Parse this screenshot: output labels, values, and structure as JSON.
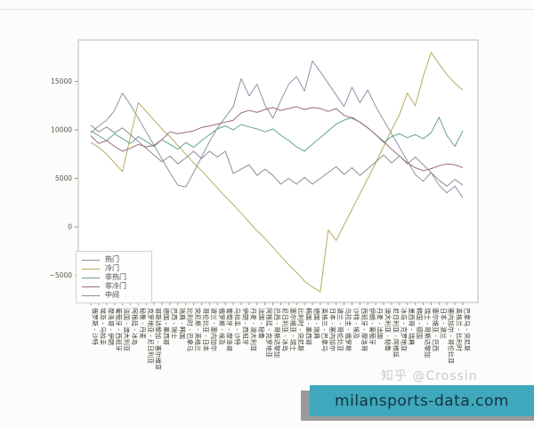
{
  "watermark": {
    "text": "知乎 @Crossin"
  },
  "banner": {
    "text": "milansports-data.com",
    "background": "#3fa8bd",
    "shadow": "#9b9b9b",
    "text_color": "#17333f"
  },
  "chart_data": {
    "type": "line",
    "title": "",
    "xlabel": "",
    "ylabel": "",
    "ylim": [
      -7900,
      19200
    ],
    "yticks": [
      -5000,
      0,
      5000,
      10000,
      15000
    ],
    "grid": false,
    "legend_position": "lower-left",
    "categories": [
      "俄罗斯 - 沙特",
      "埃及 - 乌拉圭",
      "摩洛哥 - 伊朗",
      "葡萄牙 - 西班牙",
      "法国 - 澳大利亚",
      "阿根廷 - 冰岛",
      "秘鲁 - 丹麦",
      "克罗地亚 - 尼日利亚",
      "哥斯达黎加 - 塞尔维亚",
      "德国 - 墨西哥",
      "巴西 - 瑞士",
      "瑞典 - 韩国",
      "比利时 - 巴拿马",
      "突尼斯 - 英格兰",
      "哥伦比亚 - 日本",
      "波兰 - 塞内加尔",
      "俄罗斯 - 埃及",
      "葡萄牙 - 摩洛哥",
      "乌拉圭 - 沙特",
      "伊朗 - 西班牙",
      "丹麦 - 澳大利亚",
      "法国 - 秘鲁",
      "阿根廷 - 克罗地亚",
      "巴西 - 哥斯达黎加",
      "尼日利亚 - 冰岛",
      "塞尔维亚 - 瑞士",
      "比利时 - 突尼斯",
      "韩国 - 墨西哥",
      "德国 - 瑞典",
      "英格兰 - 巴拿马",
      "日本 - 塞内加尔",
      "波兰 - 哥伦比亚",
      "乌拉圭 - 俄罗斯",
      "沙特 - 埃及",
      "西班牙 - 摩洛哥",
      "伊朗 - 葡萄牙",
      "丹麦 - 法国",
      "澳大利亚 - 秘鲁",
      "尼日利亚 - 阿根廷",
      "冰岛 - 克罗地亚",
      "墨西哥 - 瑞典",
      "韩国 - 德国",
      "瑞士 - 哥斯达黎加",
      "塞尔维亚 - 巴西",
      "日本 - 波兰",
      "塞内加尔 - 哥伦比亚",
      "英格兰 - 比利时",
      "巴拿马 - 突尼斯"
    ],
    "series": [
      {
        "key": "hot",
        "name": "热门",
        "color": "#8b93a6",
        "values": [
          9700,
          10400,
          11000,
          12000,
          13800,
          12600,
          11200,
          9800,
          8400,
          7000,
          5600,
          4300,
          4100,
          5600,
          7200,
          8800,
          10200,
          11300,
          12400,
          15300,
          13500,
          14700,
          12600,
          11200,
          13000,
          14700,
          15500,
          14000,
          17100,
          16000,
          14800,
          13600,
          12400,
          14400,
          12800,
          14100,
          12400,
          11000,
          9600,
          8200,
          6800,
          5400,
          4700,
          5600,
          4300,
          3500,
          4200,
          3000
        ]
      },
      {
        "key": "cold",
        "name": "冷门",
        "color": "#b9a95f",
        "values": [
          8700,
          8200,
          7500,
          6600,
          5700,
          9300,
          12800,
          11900,
          11000,
          10100,
          9300,
          8400,
          7500,
          6600,
          5800,
          4900,
          4000,
          3100,
          2300,
          1400,
          500,
          -400,
          -1200,
          -2100,
          -3000,
          -3900,
          -4700,
          -5600,
          -6200,
          -6700,
          -300,
          -1400,
          200,
          1800,
          3400,
          5000,
          6600,
          8300,
          10000,
          11600,
          13800,
          12500,
          15500,
          18000,
          16800,
          15700,
          14800,
          14100
        ]
      },
      {
        "key": "non-hot",
        "name": "非热门",
        "color": "#64a099",
        "values": [
          9900,
          9400,
          8900,
          9600,
          9100,
          8600,
          9300,
          8800,
          8300,
          9000,
          8500,
          8000,
          8700,
          8200,
          8900,
          9500,
          10100,
          10400,
          10000,
          10550,
          10300,
          10100,
          9800,
          10100,
          9450,
          8900,
          8250,
          7800,
          8500,
          9200,
          9900,
          10600,
          11000,
          11300,
          10800,
          10200,
          9500,
          8700,
          9300,
          9600,
          9200,
          9500,
          9100,
          9700,
          11300,
          9400,
          8300,
          9900
        ]
      },
      {
        "key": "non-cold",
        "name": "非冷门",
        "color": "#9a6a76",
        "values": [
          9400,
          8600,
          8900,
          8300,
          7800,
          8100,
          8500,
          8250,
          8400,
          9000,
          9800,
          9600,
          9750,
          9900,
          10250,
          10400,
          10600,
          10800,
          11000,
          11750,
          12000,
          11800,
          12100,
          12300,
          12000,
          12200,
          12400,
          12100,
          12300,
          12200,
          11900,
          12200,
          11500,
          11200,
          10800,
          10200,
          9500,
          8800,
          8000,
          7300,
          6600,
          6100,
          5800,
          6000,
          6300,
          6500,
          6400,
          6100
        ]
      },
      {
        "key": "middle",
        "name": "中间",
        "color": "#8f8a99",
        "values": [
          10500,
          9800,
          10300,
          9700,
          10200,
          9500,
          8800,
          8100,
          7400,
          6700,
          7300,
          6500,
          7100,
          7800,
          7050,
          7800,
          7200,
          7800,
          5500,
          5950,
          6400,
          5300,
          5950,
          5300,
          4400,
          5000,
          4400,
          5100,
          4400,
          5000,
          5600,
          6200,
          5400,
          6100,
          5300,
          6000,
          6700,
          7400,
          6600,
          7300,
          6500,
          7200,
          6400,
          5600,
          4800,
          4200,
          4900,
          4300
        ]
      }
    ]
  }
}
